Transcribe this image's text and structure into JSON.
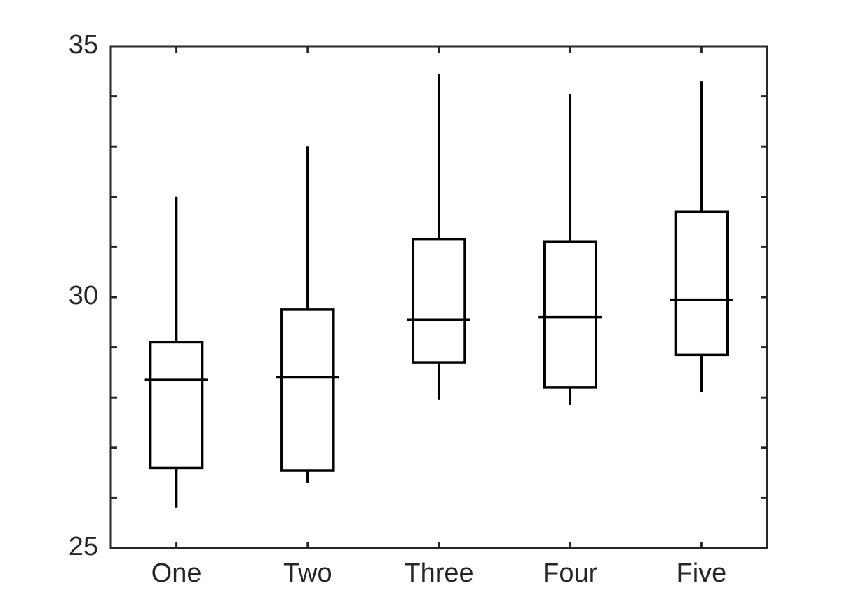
{
  "chart_data": {
    "type": "box",
    "title": "",
    "xlabel": "",
    "ylabel": "",
    "categories": [
      "One",
      "Two",
      "Three",
      "Four",
      "Five"
    ],
    "ylim": [
      25,
      35
    ],
    "yticks": [
      25,
      30,
      35
    ],
    "minor_yticks": [
      26,
      27,
      28,
      29,
      31,
      32,
      33,
      34
    ],
    "boxes": [
      {
        "label": "One",
        "whisker_low": 25.8,
        "q1": 26.6,
        "median": 28.35,
        "q3": 29.1,
        "whisker_high": 32.0
      },
      {
        "label": "Two",
        "whisker_low": 26.3,
        "q1": 26.55,
        "median": 28.4,
        "q3": 29.75,
        "whisker_high": 33.0
      },
      {
        "label": "Three",
        "whisker_low": 27.95,
        "q1": 28.7,
        "median": 29.55,
        "q3": 31.15,
        "whisker_high": 34.45
      },
      {
        "label": "Four",
        "whisker_low": 27.85,
        "q1": 28.2,
        "median": 29.6,
        "q3": 31.1,
        "whisker_high": 34.05
      },
      {
        "label": "Five",
        "whisker_low": 28.1,
        "q1": 28.85,
        "median": 29.95,
        "q3": 31.7,
        "whisker_high": 34.3
      }
    ],
    "grid": false,
    "colors": {
      "line": "#000000",
      "axis": "#262626"
    }
  }
}
